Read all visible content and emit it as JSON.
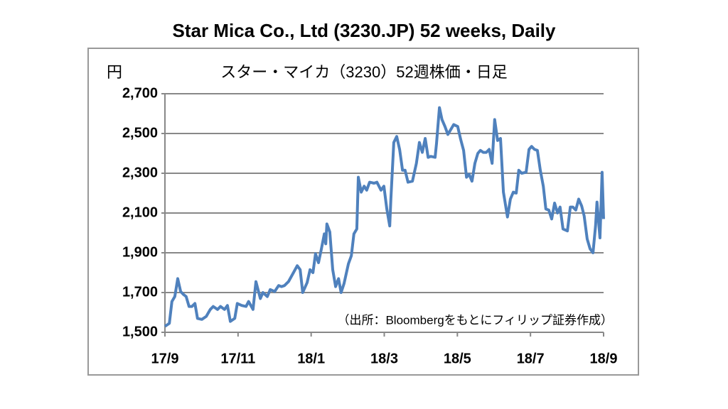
{
  "chart_data": {
    "type": "line",
    "title": "Star Mica Co., Ltd (3230.JP) 52 weeks, Daily",
    "subtitle": "スター・マイカ（3230）52週株価・日足",
    "y_unit": "円",
    "annotation": "（出所：Bloombergをもとにフィリップ証券作成）",
    "color": "#4f81bd",
    "grid": true,
    "xlim": [
      0,
      12
    ],
    "ylim": [
      1500,
      2700
    ],
    "xticks": [
      {
        "value": 0,
        "label": "17/9"
      },
      {
        "value": 2,
        "label": "17/11"
      },
      {
        "value": 4,
        "label": "18/1"
      },
      {
        "value": 6,
        "label": "18/3"
      },
      {
        "value": 8,
        "label": "18/5"
      },
      {
        "value": 10,
        "label": "18/7"
      },
      {
        "value": 12,
        "label": "18/9"
      }
    ],
    "yticks": [
      {
        "value": 1500,
        "label": "1,500"
      },
      {
        "value": 1700,
        "label": "1,700"
      },
      {
        "value": 1900,
        "label": "1,900"
      },
      {
        "value": 2100,
        "label": "2,100"
      },
      {
        "value": 2300,
        "label": "2,300"
      },
      {
        "value": 2500,
        "label": "2,500"
      },
      {
        "value": 2700,
        "label": "2,700"
      }
    ],
    "x": [
      0,
      0.12,
      0.19,
      0.27,
      0.35,
      0.43,
      0.51,
      0.58,
      0.66,
      0.74,
      0.82,
      0.89,
      1.01,
      1.13,
      1.24,
      1.32,
      1.44,
      1.52,
      1.63,
      1.71,
      1.79,
      1.91,
      1.98,
      2.1,
      2.22,
      2.29,
      2.41,
      2.49,
      2.61,
      2.68,
      2.8,
      2.88,
      3.0,
      3.11,
      3.19,
      3.27,
      3.38,
      3.5,
      3.62,
      3.7,
      3.77,
      3.89,
      3.97,
      4.05,
      4.12,
      4.2,
      4.28,
      4.36,
      4.4,
      4.43,
      4.51,
      4.59,
      4.67,
      4.75,
      4.82,
      4.9,
      5.02,
      5.1,
      5.17,
      5.25,
      5.29,
      5.37,
      5.45,
      5.52,
      5.6,
      5.72,
      5.8,
      5.91,
      5.99,
      6.07,
      6.15,
      6.18,
      6.26,
      6.34,
      6.42,
      6.5,
      6.57,
      6.65,
      6.77,
      6.88,
      6.96,
      7.04,
      7.12,
      7.2,
      7.27,
      7.39,
      7.43,
      7.51,
      7.58,
      7.66,
      7.74,
      7.82,
      7.9,
      8.01,
      8.09,
      8.17,
      8.25,
      8.32,
      8.4,
      8.48,
      8.56,
      8.63,
      8.71,
      8.79,
      8.87,
      8.95,
      9.02,
      9.1,
      9.18,
      9.26,
      9.37,
      9.45,
      9.53,
      9.61,
      9.68,
      9.76,
      9.88,
      9.96,
      10.03,
      10.11,
      10.19,
      10.27,
      10.35,
      10.42,
      10.5,
      10.58,
      10.66,
      10.74,
      10.81,
      10.89,
      11.01,
      11.09,
      11.16,
      11.24,
      11.32,
      11.4,
      11.47,
      11.55,
      11.63,
      11.71,
      11.78,
      11.82,
      11.9,
      11.93,
      11.96,
      12.0
    ],
    "values": [
      1530,
      1545,
      1655,
      1680,
      1770,
      1705,
      1690,
      1680,
      1630,
      1630,
      1645,
      1570,
      1565,
      1580,
      1615,
      1630,
      1615,
      1630,
      1615,
      1635,
      1555,
      1570,
      1645,
      1635,
      1630,
      1655,
      1615,
      1755,
      1670,
      1700,
      1680,
      1715,
      1705,
      1735,
      1730,
      1735,
      1755,
      1795,
      1835,
      1815,
      1700,
      1750,
      1815,
      1800,
      1895,
      1850,
      1920,
      1995,
      1945,
      2045,
      2005,
      1815,
      1730,
      1770,
      1700,
      1745,
      1845,
      1885,
      1995,
      2020,
      2280,
      2205,
      2235,
      2215,
      2255,
      2250,
      2255,
      2215,
      2235,
      2120,
      2035,
      2170,
      2455,
      2485,
      2420,
      2315,
      2315,
      2255,
      2260,
      2350,
      2455,
      2405,
      2475,
      2380,
      2385,
      2380,
      2450,
      2630,
      2570,
      2535,
      2495,
      2520,
      2545,
      2535,
      2470,
      2415,
      2280,
      2295,
      2260,
      2350,
      2400,
      2415,
      2405,
      2405,
      2420,
      2350,
      2570,
      2465,
      2475,
      2205,
      2080,
      2170,
      2205,
      2200,
      2315,
      2300,
      2305,
      2420,
      2435,
      2420,
      2415,
      2315,
      2235,
      2120,
      2115,
      2070,
      2150,
      2100,
      2130,
      2020,
      2010,
      2130,
      2130,
      2115,
      2170,
      2135,
      2085,
      1970,
      1920,
      1900,
      2035,
      2155,
      1975,
      2135,
      2305,
      2070
    ]
  }
}
